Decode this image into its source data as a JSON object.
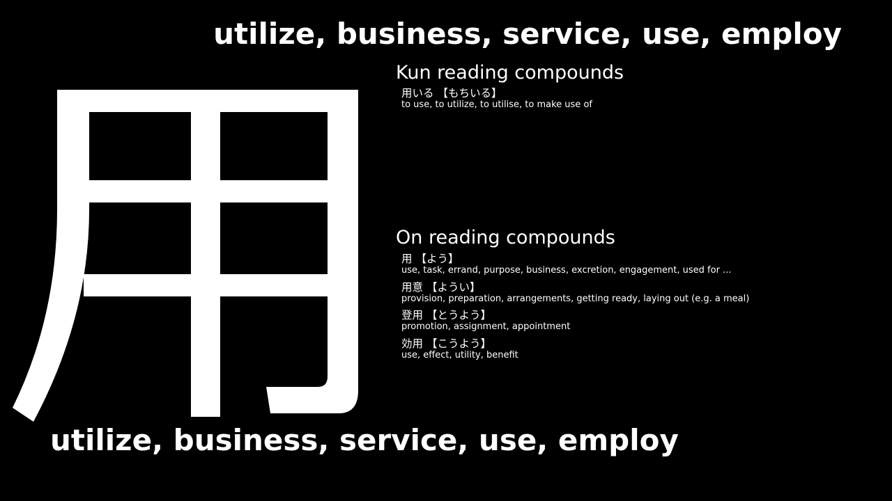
{
  "meaning": "utilize, business, service, use, employ",
  "kanji": "用",
  "kun_section": {
    "title": "Kun reading compounds",
    "compounds": [
      {
        "word": "用いる",
        "reading": "【もちいる】",
        "definition": "to use, to utilize, to utilise, to make use of"
      }
    ]
  },
  "on_section": {
    "title": "On reading compounds",
    "compounds": [
      {
        "word": "用",
        "reading": "【よう】",
        "definition": "use, task, errand, purpose, business, excretion, engagement, used for ..."
      },
      {
        "word": "用意",
        "reading": "【ようい】",
        "definition": "provision, preparation, arrangements, getting ready, laying out (e.g. a meal)"
      },
      {
        "word": "登用",
        "reading": "【とうよう】",
        "definition": "promotion, assignment, appointment"
      },
      {
        "word": "効用",
        "reading": "【こうよう】",
        "definition": "use, effect, utility, benefit"
      }
    ]
  },
  "colors": {
    "background": "#000000",
    "text": "#ffffff"
  }
}
